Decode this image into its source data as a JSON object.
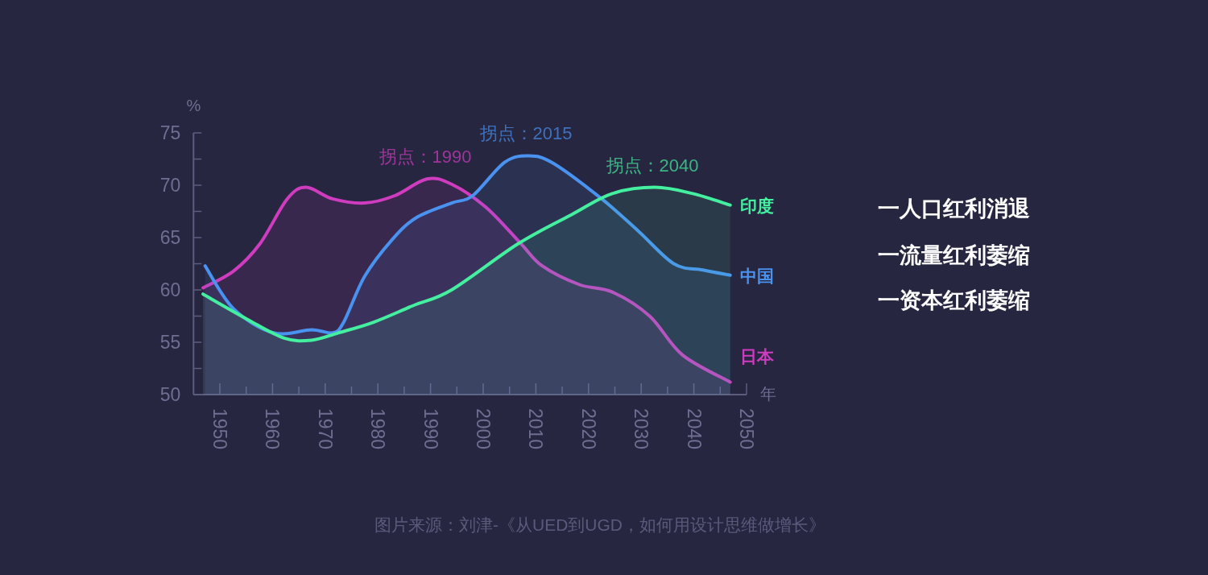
{
  "chart_data": {
    "type": "area",
    "xlabel": "年",
    "ylabel": "%",
    "xlim": [
      1945,
      2050
    ],
    "ylim": [
      50,
      75
    ],
    "xticks": [
      1950,
      1960,
      1970,
      1980,
      1990,
      2000,
      2010,
      2020,
      2030,
      2040,
      2050
    ],
    "yticks": [
      50,
      55,
      60,
      65,
      70,
      75
    ],
    "grid": false,
    "legend": false,
    "series": [
      {
        "name": "日本",
        "color": "#d03cc0",
        "x": [
          1946.8,
          1952.6,
          1957.6,
          1962.8,
          1966.4,
          1971.4,
          1977.5,
          1983.2,
          1989.3,
          1994.0,
          2000.5,
          2007.2,
          2011.2,
          2018.3,
          2024.5,
          2031.6,
          2037.8,
          2046.9
        ],
        "values": [
          60.2,
          61.8,
          64.4,
          68.7,
          69.8,
          68.7,
          68.3,
          69.0,
          70.6,
          70.1,
          67.9,
          64.4,
          62.3,
          60.5,
          59.8,
          57.5,
          53.8,
          51.2
        ]
      },
      {
        "name": "中国",
        "color": "#4a92f0",
        "x": [
          1947.2,
          1952.6,
          1960.2,
          1967.4,
          1971.4,
          1973.5,
          1977.5,
          1982.7,
          1987.3,
          1994.0,
          1998.0,
          2004.1,
          2008.7,
          2013.3,
          2022.5,
          2029.5,
          2036.2,
          2041.7,
          2046.9
        ],
        "values": [
          62.3,
          58.2,
          55.9,
          56.2,
          55.9,
          56.9,
          61.3,
          64.8,
          66.9,
          68.3,
          69.0,
          72.2,
          72.8,
          72.1,
          68.7,
          65.6,
          62.5,
          61.9,
          61.4
        ]
      },
      {
        "name": "印度",
        "color": "#44f0a0",
        "x": [
          1946.8,
          1955.2,
          1962.2,
          1967.4,
          1972.5,
          1979.1,
          1986.7,
          1994.0,
          2006.6,
          2016.8,
          2024.5,
          2032.6,
          2039.8,
          2046.9
        ],
        "values": [
          59.6,
          57.2,
          55.4,
          55.2,
          55.9,
          56.9,
          58.5,
          60.0,
          64.4,
          67.2,
          69.2,
          69.8,
          69.2,
          68.1
        ]
      }
    ],
    "annotations": [
      "拐点：1990",
      "拐点：2015",
      "拐点：2040",
      "一人口红利消退",
      "一流量红利萎缩",
      "一资本红利萎缩",
      "图片来源：刘津-《从UED到UGD，如何用设计思维做增长》"
    ]
  }
}
